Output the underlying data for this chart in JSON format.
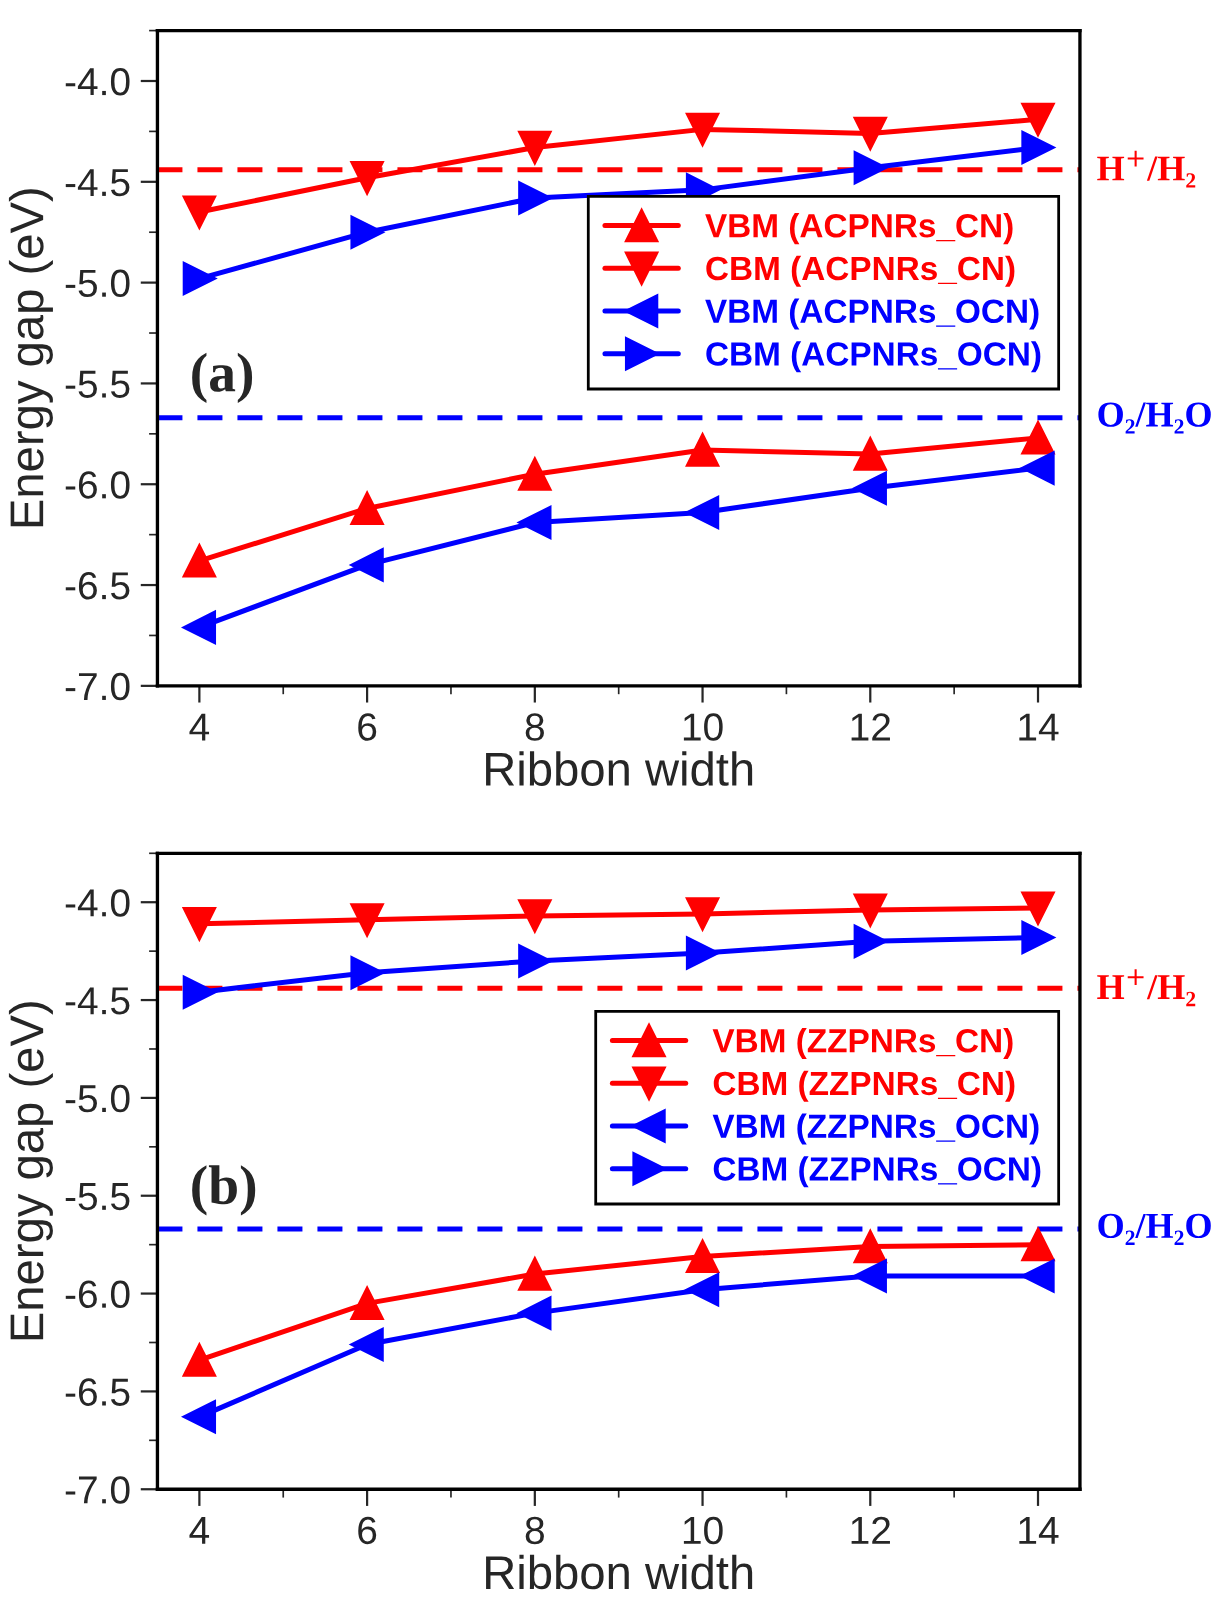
{
  "chart_data": [
    {
      "type": "line",
      "xlabel": "Ribbon width",
      "ylabel": "Energy gap (eV)",
      "annotations": [
        "(a)"
      ],
      "x": [
        4,
        6,
        8,
        10,
        12,
        14
      ],
      "xlim": [
        3.5,
        14.5
      ],
      "xticks": [
        4,
        6,
        8,
        10,
        12,
        14
      ],
      "ylim": [
        -7.0,
        -3.75
      ],
      "yticks": [
        {
          "value": -7.0,
          "label": "-7.0"
        },
        {
          "value": -6.5,
          "label": "-6.5"
        },
        {
          "value": -6.0,
          "label": "-6.0"
        },
        {
          "value": -5.5,
          "label": "-5.5"
        },
        {
          "value": -5.0,
          "label": "-5.0"
        },
        {
          "value": -4.5,
          "label": "-4.5"
        },
        {
          "value": -4.0,
          "label": "-4.0"
        }
      ],
      "legend": "right",
      "grid": false,
      "line_style": "solid",
      "ref_lines": [
        {
          "axis": "y",
          "value": -4.44,
          "label": "H$^{+}$/H₂",
          "color": "#ff0000",
          "line_style": "dashed"
        },
        {
          "axis": "y",
          "value": -5.67,
          "label": "O₂/H₂O",
          "color": "#0000ff",
          "line_style": "dashed"
        }
      ],
      "series": [
        {
          "name": "VBM (ACPNRs_CN)",
          "color": "#ff0000",
          "marker": "triangle-up",
          "values": [
            -6.38,
            -6.12,
            -5.95,
            -5.83,
            -5.85,
            -5.77
          ]
        },
        {
          "name": "CBM (ACPNRs_CN)",
          "color": "#ff0000",
          "marker": "triangle-down",
          "values": [
            -4.65,
            -4.48,
            -4.33,
            -4.24,
            -4.26,
            -4.19
          ]
        },
        {
          "name": "VBM (ACPNRs_OCN)",
          "color": "#0000ff",
          "marker": "triangle-left",
          "values": [
            -6.71,
            -6.4,
            -6.19,
            -6.14,
            -6.02,
            -5.92
          ]
        },
        {
          "name": "CBM (ACPNRs_OCN)",
          "color": "#0000ff",
          "marker": "triangle-right",
          "values": [
            -4.98,
            -4.75,
            -4.58,
            -4.54,
            -4.43,
            -4.33
          ]
        }
      ]
    },
    {
      "type": "line",
      "xlabel": "Ribbon width",
      "ylabel": "Energy gap (eV)",
      "annotations": [
        "(b)"
      ],
      "x": [
        4,
        6,
        8,
        10,
        12,
        14
      ],
      "xlim": [
        3.5,
        14.5
      ],
      "xticks": [
        4,
        6,
        8,
        10,
        12,
        14
      ],
      "ylim": [
        -7.0,
        -3.75
      ],
      "yticks": [
        {
          "value": -7.0,
          "label": "-7.0"
        },
        {
          "value": -6.5,
          "label": "-6.5"
        },
        {
          "value": -6.0,
          "label": "-6.0"
        },
        {
          "value": -5.5,
          "label": "-5.5"
        },
        {
          "value": -5.0,
          "label": "-5.0"
        },
        {
          "value": -4.5,
          "label": "-4.5"
        },
        {
          "value": -4.0,
          "label": "-4.0"
        }
      ],
      "legend": "right",
      "grid": false,
      "line_style": "solid",
      "ref_lines": [
        {
          "axis": "y",
          "value": -4.44,
          "label": "H$^{+}$/H₂",
          "color": "#ff0000",
          "line_style": "dashed"
        },
        {
          "axis": "y",
          "value": -5.67,
          "label": "O₂/H₂O",
          "color": "#0000ff",
          "line_style": "dashed"
        }
      ],
      "series": [
        {
          "name": "VBM (ZZPNRs_CN)",
          "color": "#ff0000",
          "marker": "triangle-up",
          "values": [
            -6.34,
            -6.05,
            -5.9,
            -5.81,
            -5.76,
            -5.75
          ]
        },
        {
          "name": "CBM (ZZPNRs_CN)",
          "color": "#ff0000",
          "marker": "triangle-down",
          "values": [
            -4.11,
            -4.09,
            -4.07,
            -4.06,
            -4.04,
            -4.03
          ]
        },
        {
          "name": "VBM (ZZPNRs_OCN)",
          "color": "#0000ff",
          "marker": "triangle-left",
          "values": [
            -6.63,
            -6.26,
            -6.1,
            -5.98,
            -5.91,
            -5.91
          ]
        },
        {
          "name": "CBM (ZZPNRs_OCN)",
          "color": "#0000ff",
          "marker": "triangle-right",
          "values": [
            -4.46,
            -4.36,
            -4.3,
            -4.26,
            -4.2,
            -4.18
          ]
        }
      ]
    }
  ]
}
